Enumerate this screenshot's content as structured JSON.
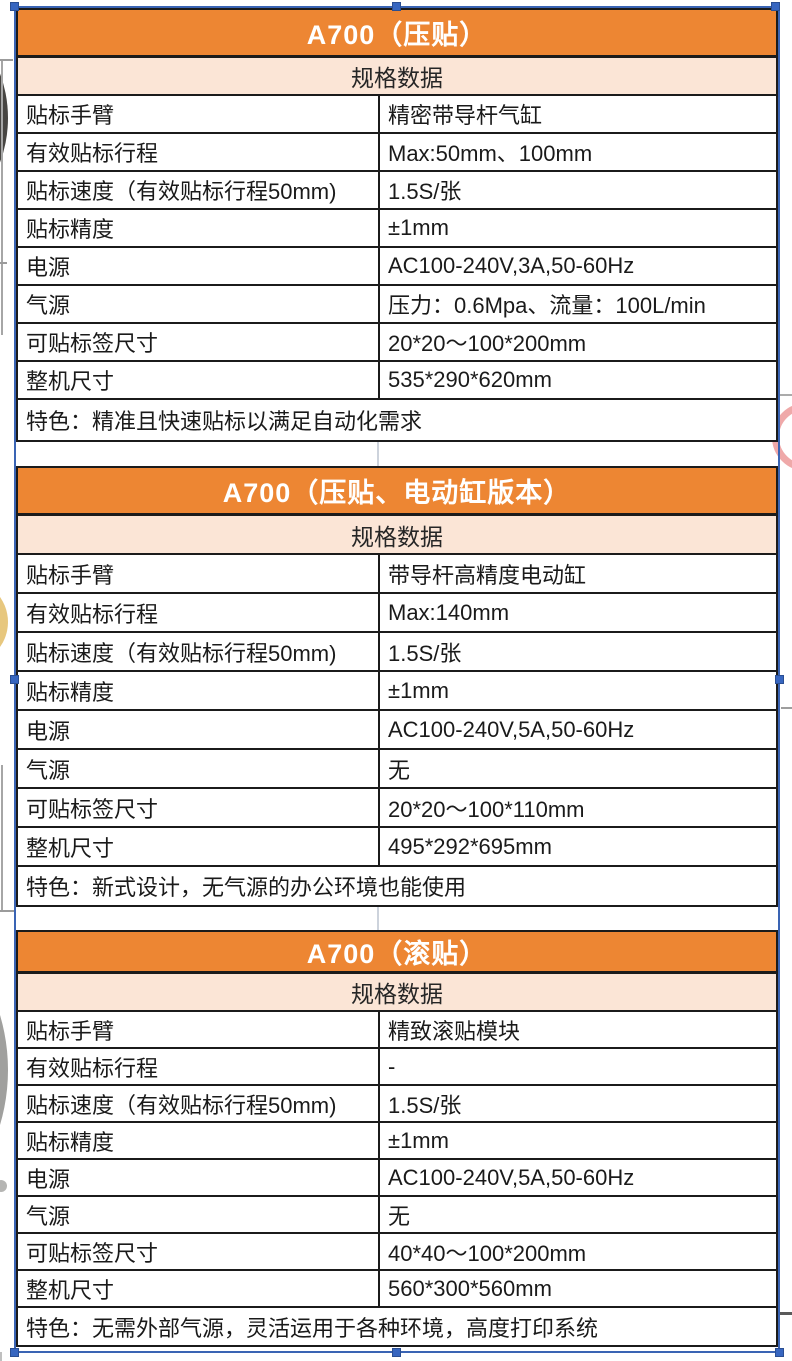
{
  "colors": {
    "accent_orange": "#ED8633",
    "subheader_peach": "#FBE5D6",
    "table_border": "#1B1B1B",
    "selection_blue": "#3A64B4",
    "handle_blue": "#3766C0",
    "title_text": "#FFFFFF",
    "cell_text": "#1A1A1A"
  },
  "tables": [
    {
      "title": "A700（压贴）",
      "subtitle": "规格数据",
      "rows": [
        {
          "label": "贴标手臂",
          "value": "精密带导杆气缸"
        },
        {
          "label": "有效贴标行程",
          "value": "Max:50mm、100mm"
        },
        {
          "label": "贴标速度（有效贴标行程50mm)",
          "value": "1.5S/张"
        },
        {
          "label": "贴标精度",
          "value": "±1mm"
        },
        {
          "label": "电源",
          "value": "AC100-240V,3A,50-60Hz"
        },
        {
          "label": "气源",
          "value": "压力：0.6Mpa、流量：100L/min"
        },
        {
          "label": "可贴标签尺寸",
          "value": "20*20～100*200mm"
        },
        {
          "label": "整机尺寸",
          "value": "535*290*620mm"
        }
      ],
      "feature": "特色：精准且快速贴标以满足自动化需求"
    },
    {
      "title": "A700（压贴、电动缸版本）",
      "subtitle": "规格数据",
      "rows": [
        {
          "label": "贴标手臂",
          "value": "带导杆高精度电动缸"
        },
        {
          "label": "有效贴标行程",
          "value": "Max:140mm"
        },
        {
          "label": "贴标速度（有效贴标行程50mm)",
          "value": "1.5S/张"
        },
        {
          "label": "贴标精度",
          "value": "±1mm"
        },
        {
          "label": "电源",
          "value": "AC100-240V,5A,50-60Hz"
        },
        {
          "label": "气源",
          "value": "无"
        },
        {
          "label": "可贴标签尺寸",
          "value": "20*20～100*110mm"
        },
        {
          "label": "整机尺寸",
          "value": "495*292*695mm"
        }
      ],
      "feature": "特色：新式设计，无气源的办公环境也能使用"
    },
    {
      "title": "A700（滚贴）",
      "subtitle": "规格数据",
      "rows": [
        {
          "label": "贴标手臂",
          "value": "精致滚贴模块"
        },
        {
          "label": "有效贴标行程",
          "value": "-"
        },
        {
          "label": "贴标速度（有效贴标行程50mm)",
          "value": "1.5S/张"
        },
        {
          "label": "贴标精度",
          "value": "±1mm"
        },
        {
          "label": "电源",
          "value": "AC100-240V,5A,50-60Hz"
        },
        {
          "label": "气源",
          "value": "无"
        },
        {
          "label": "可贴标签尺寸",
          "value": "40*40～100*200mm"
        },
        {
          "label": "整机尺寸",
          "value": "560*300*560mm"
        }
      ],
      "feature": "特色：无需外部气源，灵活运用于各种环境，高度打印系统"
    }
  ]
}
